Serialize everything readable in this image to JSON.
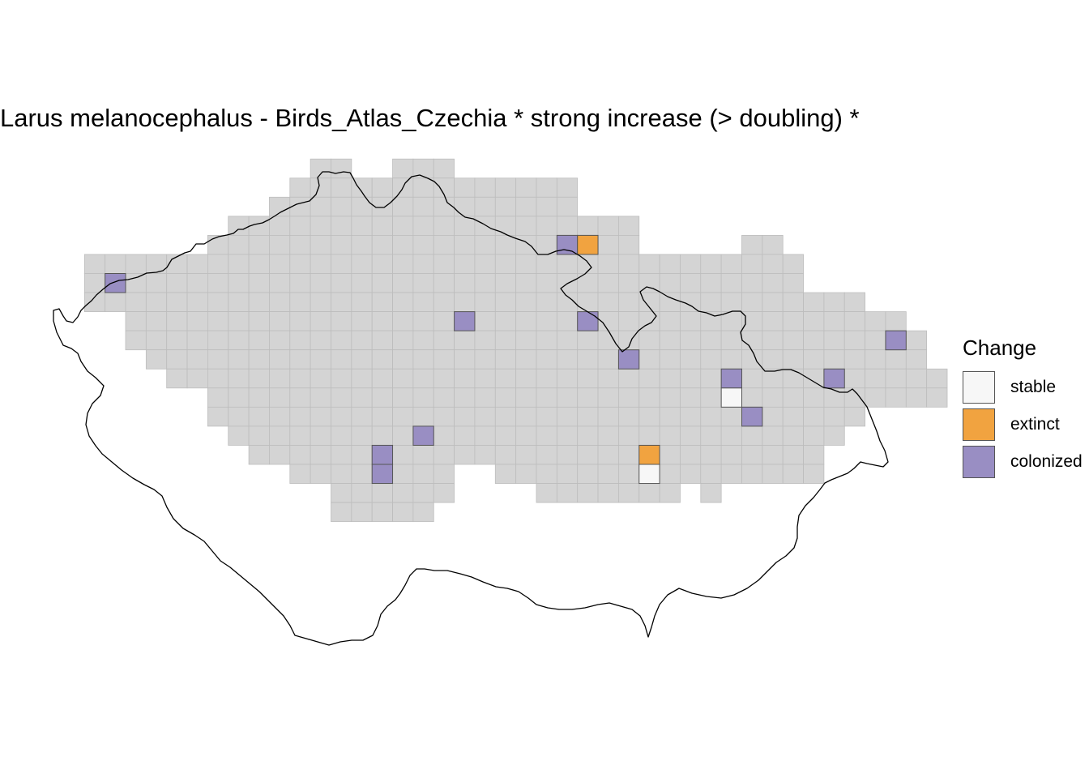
{
  "title": "Larus melanocephalus - Birds_Atlas_Czechia * strong increase (> doubling) *",
  "legend": {
    "title": "Change",
    "items": [
      {
        "key": "stable",
        "label": "stable",
        "color": "#f7f7f7"
      },
      {
        "key": "extinct",
        "label": "extinct",
        "color": "#f1a340"
      },
      {
        "key": "colonized",
        "label": "colonized",
        "color": "#998ec3"
      }
    ]
  },
  "colors": {
    "cell_fill": "#d4d4d4",
    "cell_stroke": "#bdbdbd",
    "highlight_stroke": "#555555",
    "border_line": "#000000"
  },
  "chart_data": {
    "type": "heatmap",
    "grid_rows": [
      [
        13,
        14,
        17,
        19
      ],
      [
        12,
        19,
        20,
        25
      ],
      [
        11,
        25
      ],
      [
        9,
        28
      ],
      [
        8,
        28,
        34,
        35
      ],
      [
        2,
        35,
        36,
        36
      ],
      [
        2,
        36
      ],
      [
        2,
        39
      ],
      [
        4,
        41
      ],
      [
        4,
        42
      ],
      [
        5,
        42
      ],
      [
        6,
        43
      ],
      [
        8,
        43
      ],
      [
        8,
        39
      ],
      [
        9,
        38
      ],
      [
        10,
        37
      ],
      [
        12,
        19,
        22,
        37
      ],
      [
        14,
        19,
        24,
        30,
        32,
        32
      ],
      [
        14,
        18
      ]
    ],
    "highlighted_cells": [
      {
        "row": 4,
        "col": 25,
        "status": "colonized"
      },
      {
        "row": 4,
        "col": 26,
        "status": "extinct"
      },
      {
        "row": 6,
        "col": 3,
        "status": "colonized"
      },
      {
        "row": 8,
        "col": 20,
        "status": "colonized"
      },
      {
        "row": 8,
        "col": 26,
        "status": "colonized"
      },
      {
        "row": 9,
        "col": 41,
        "status": "colonized"
      },
      {
        "row": 10,
        "col": 28,
        "status": "colonized"
      },
      {
        "row": 11,
        "col": 33,
        "status": "colonized"
      },
      {
        "row": 11,
        "col": 38,
        "status": "colonized"
      },
      {
        "row": 12,
        "col": 33,
        "status": "stable"
      },
      {
        "row": 13,
        "col": 34,
        "status": "colonized"
      },
      {
        "row": 14,
        "col": 18,
        "status": "colonized"
      },
      {
        "row": 15,
        "col": 16,
        "status": "colonized"
      },
      {
        "row": 15,
        "col": 29,
        "status": "extinct"
      },
      {
        "row": 16,
        "col": 16,
        "status": "colonized"
      },
      {
        "row": 16,
        "col": 29,
        "status": "stable"
      }
    ]
  }
}
